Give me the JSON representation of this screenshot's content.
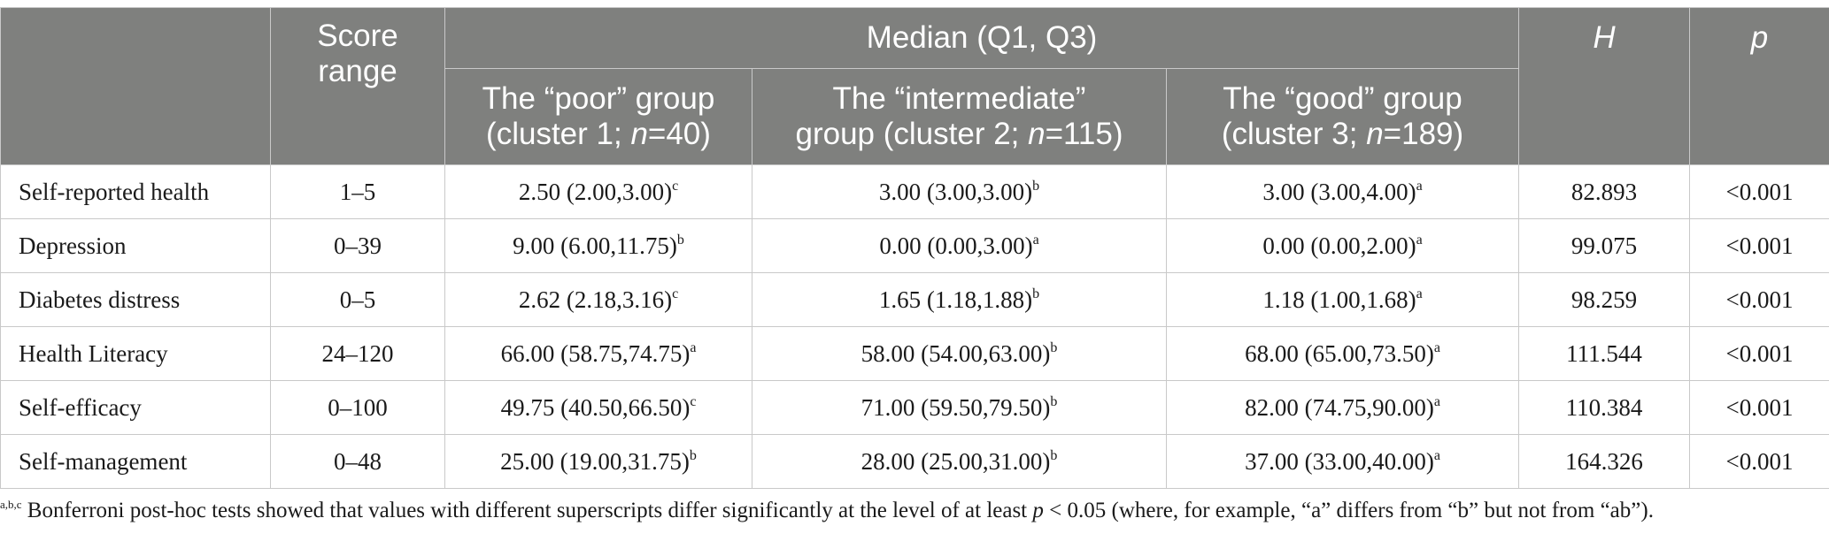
{
  "table": {
    "header": {
      "score_range": "Score range",
      "median_group": "Median (Q1, Q3)",
      "H": "H",
      "p": "p",
      "groups": [
        {
          "line1": "The “poor” group",
          "line2_prefix": "(cluster 1; ",
          "n_label": "n",
          "n_value": "=40)"
        },
        {
          "line1": "The “intermediate”",
          "line2_prefix": "group (cluster 2; ",
          "n_label": "n",
          "n_value": "=115)"
        },
        {
          "line1": "The “good” group",
          "line2_prefix": "(cluster 3; ",
          "n_label": "n",
          "n_value": "=189)"
        }
      ]
    },
    "rows": [
      {
        "label": "Self-reported health",
        "range": "1–5",
        "g1": "2.50 (2.00,3.00)",
        "g1_sup": "c",
        "g2": "3.00 (3.00,3.00)",
        "g2_sup": "b",
        "g3": "3.00 (3.00,4.00)",
        "g3_sup": "a",
        "H": "82.893",
        "p": "<0.001"
      },
      {
        "label": "Depression",
        "range": "0–39",
        "g1": "9.00 (6.00,11.75)",
        "g1_sup": "b",
        "g2": "0.00 (0.00,3.00)",
        "g2_sup": "a",
        "g3": "0.00 (0.00,2.00)",
        "g3_sup": "a",
        "H": "99.075",
        "p": "<0.001"
      },
      {
        "label": "Diabetes distress",
        "range": "0–5",
        "g1": "2.62 (2.18,3.16)",
        "g1_sup": "c",
        "g2": "1.65 (1.18,1.88)",
        "g2_sup": "b",
        "g3": "1.18 (1.00,1.68)",
        "g3_sup": "a",
        "H": "98.259",
        "p": "<0.001"
      },
      {
        "label": "Health Literacy",
        "range": "24–120",
        "g1": "66.00 (58.75,74.75)",
        "g1_sup": "a",
        "g2": "58.00 (54.00,63.00)",
        "g2_sup": "b",
        "g3": "68.00 (65.00,73.50)",
        "g3_sup": "a",
        "H": "111.544",
        "p": "<0.001"
      },
      {
        "label": "Self-efficacy",
        "range": "0–100",
        "g1": "49.75 (40.50,66.50)",
        "g1_sup": "c",
        "g2": "71.00 (59.50,79.50)",
        "g2_sup": "b",
        "g3": "82.00 (74.75,90.00)",
        "g3_sup": "a",
        "H": "110.384",
        "p": "<0.001"
      },
      {
        "label": "Self-management",
        "range": "0–48",
        "g1": "25.00 (19.00,31.75)",
        "g1_sup": "b",
        "g2": "28.00 (25.00,31.00)",
        "g2_sup": "b",
        "g3": "37.00 (33.00,40.00)",
        "g3_sup": "a",
        "H": "164.326",
        "p": "<0.001"
      }
    ]
  },
  "footnote": {
    "marks": "a,b,c",
    "text_before": " Bonferroni post-hoc tests showed that values with different superscripts differ significantly at the level of at least ",
    "p_symbol": "p",
    "text_after": " < 0.05 (where, for example, “a” differs from “b” but not from “ab”)."
  },
  "colors": {
    "header_bg": "#7f807e",
    "header_text": "#ffffff",
    "grid": "#c9c9c9"
  }
}
